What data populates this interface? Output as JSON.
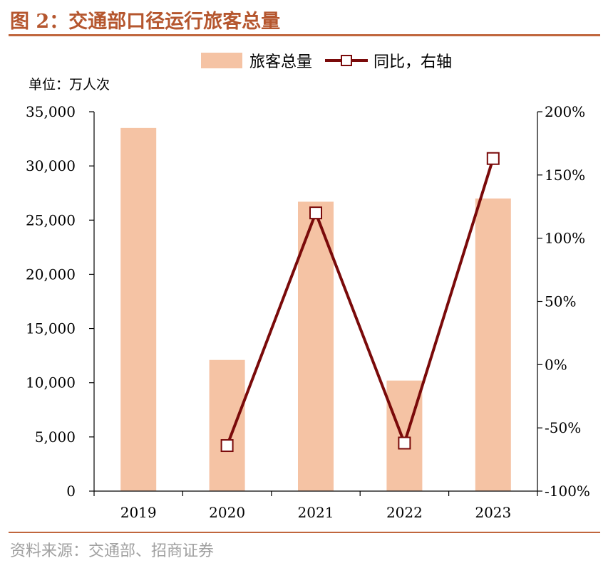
{
  "header": {
    "title": "图 2：交通部口径运行旅客总量"
  },
  "unit_label": "单位：万人次",
  "source": "资料来源：交通部、招商证券",
  "legend": {
    "bar_label": "旅客总量",
    "line_label": "同比，右轴"
  },
  "colors": {
    "bar": "#f5c3a4",
    "line": "#7a0a0a",
    "title": "#b5562e",
    "rule": "#c0663d"
  },
  "chart_data": {
    "type": "bar",
    "categories": [
      "2019",
      "2020",
      "2021",
      "2022",
      "2023"
    ],
    "series": [
      {
        "name": "旅客总量",
        "type": "bar",
        "axis": "left",
        "values": [
          33500,
          12100,
          26700,
          10200,
          27000
        ]
      },
      {
        "name": "同比，右轴",
        "type": "line",
        "axis": "right",
        "values": [
          null,
          -64,
          120,
          -62,
          163
        ]
      }
    ],
    "y_left": {
      "min": 0,
      "max": 35000,
      "ticks": [
        "0",
        "5,000",
        "10,000",
        "15,000",
        "20,000",
        "25,000",
        "30,000",
        "35,000"
      ]
    },
    "y_right": {
      "min": -100,
      "max": 200,
      "ticks": [
        "-100%",
        "-50%",
        "0%",
        "50%",
        "100%",
        "150%",
        "200%"
      ]
    },
    "grid": false,
    "legend_position": "top"
  }
}
